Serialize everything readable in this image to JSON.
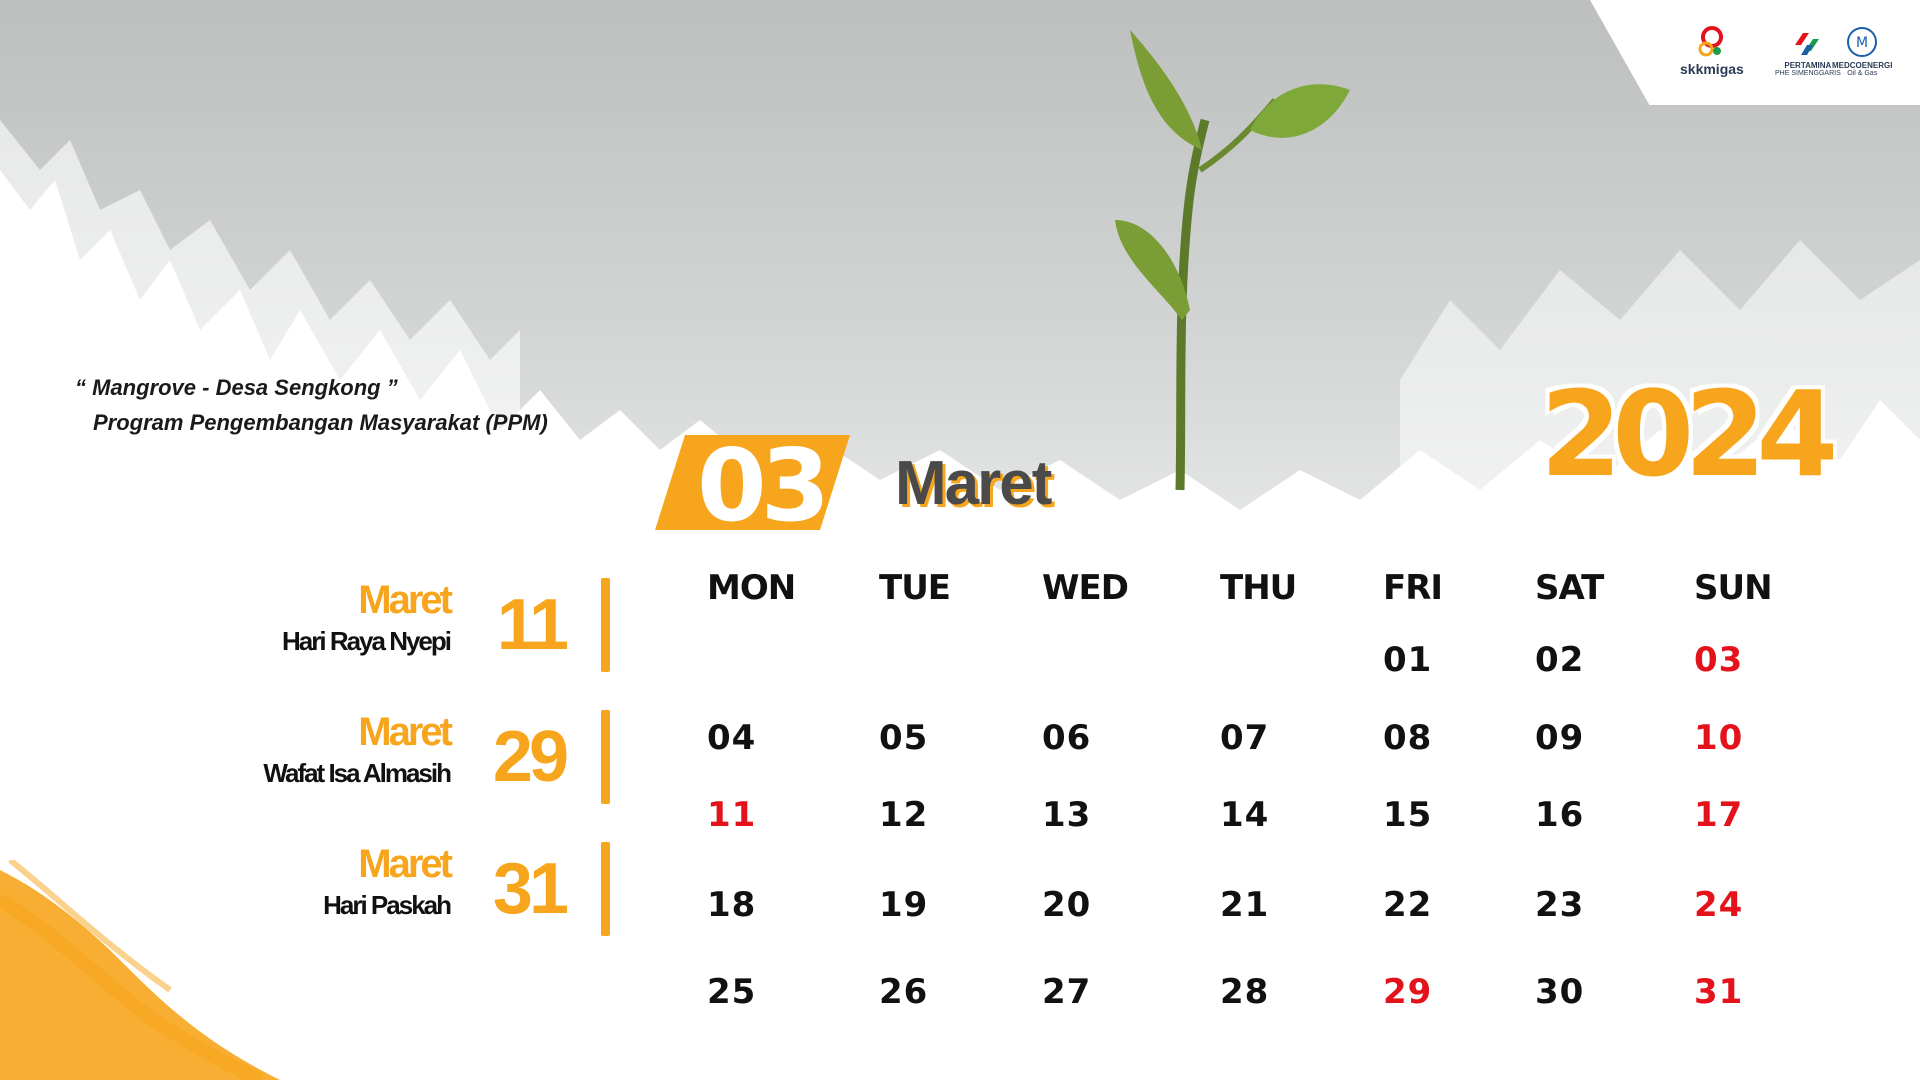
{
  "quote": {
    "line1": "“ Mangrove - Desa Sengkong ”",
    "line2": "Program Pengembangan Masyarakat (PPM)"
  },
  "logos": [
    {
      "name": "skkmigas",
      "label": "skkmigas",
      "sub": ""
    },
    {
      "name": "pertamina",
      "label": "PERTAMINA",
      "sub": "PHE SIMENGGARIS"
    },
    {
      "name": "medcoenergi",
      "label": "MEDCOENERGI",
      "sub": "Oil & Gas"
    }
  ],
  "year": "2024",
  "month": {
    "number": "03",
    "name": "Maret"
  },
  "holidays": [
    {
      "month": "Maret",
      "name": "Hari Raya Nyepi",
      "day": "11"
    },
    {
      "month": "Maret",
      "name": "Wafat Isa Almasih",
      "day": "29"
    },
    {
      "month": "Maret",
      "name": "Hari Paskah",
      "day": "31"
    }
  ],
  "calendar": {
    "weekdays": [
      "MON",
      "TUE",
      "WED",
      "THU",
      "FRI",
      "SAT",
      "SUN"
    ],
    "weeks": [
      [
        {
          "d": ""
        },
        {
          "d": ""
        },
        {
          "d": ""
        },
        {
          "d": ""
        },
        {
          "d": "01"
        },
        {
          "d": "02"
        },
        {
          "d": "03",
          "red": true
        }
      ],
      [
        {
          "d": "04"
        },
        {
          "d": "05"
        },
        {
          "d": "06"
        },
        {
          "d": "07"
        },
        {
          "d": "08"
        },
        {
          "d": "09"
        },
        {
          "d": "10",
          "red": true
        }
      ],
      [
        {
          "d": "11",
          "red": true
        },
        {
          "d": "12"
        },
        {
          "d": "13"
        },
        {
          "d": "14"
        },
        {
          "d": "15"
        },
        {
          "d": "16"
        },
        {
          "d": "17",
          "red": true
        }
      ],
      [
        {
          "d": "18"
        },
        {
          "d": "19"
        },
        {
          "d": "20"
        },
        {
          "d": "21"
        },
        {
          "d": "22"
        },
        {
          "d": "23"
        },
        {
          "d": "24",
          "red": true
        }
      ],
      [
        {
          "d": "25"
        },
        {
          "d": "26"
        },
        {
          "d": "27"
        },
        {
          "d": "28"
        },
        {
          "d": "29",
          "red": true
        },
        {
          "d": "30"
        },
        {
          "d": "31",
          "red": true
        }
      ]
    ]
  },
  "colors": {
    "accent": "#f7a51c",
    "holiday_red": "#e4121b",
    "text": "#111111"
  }
}
